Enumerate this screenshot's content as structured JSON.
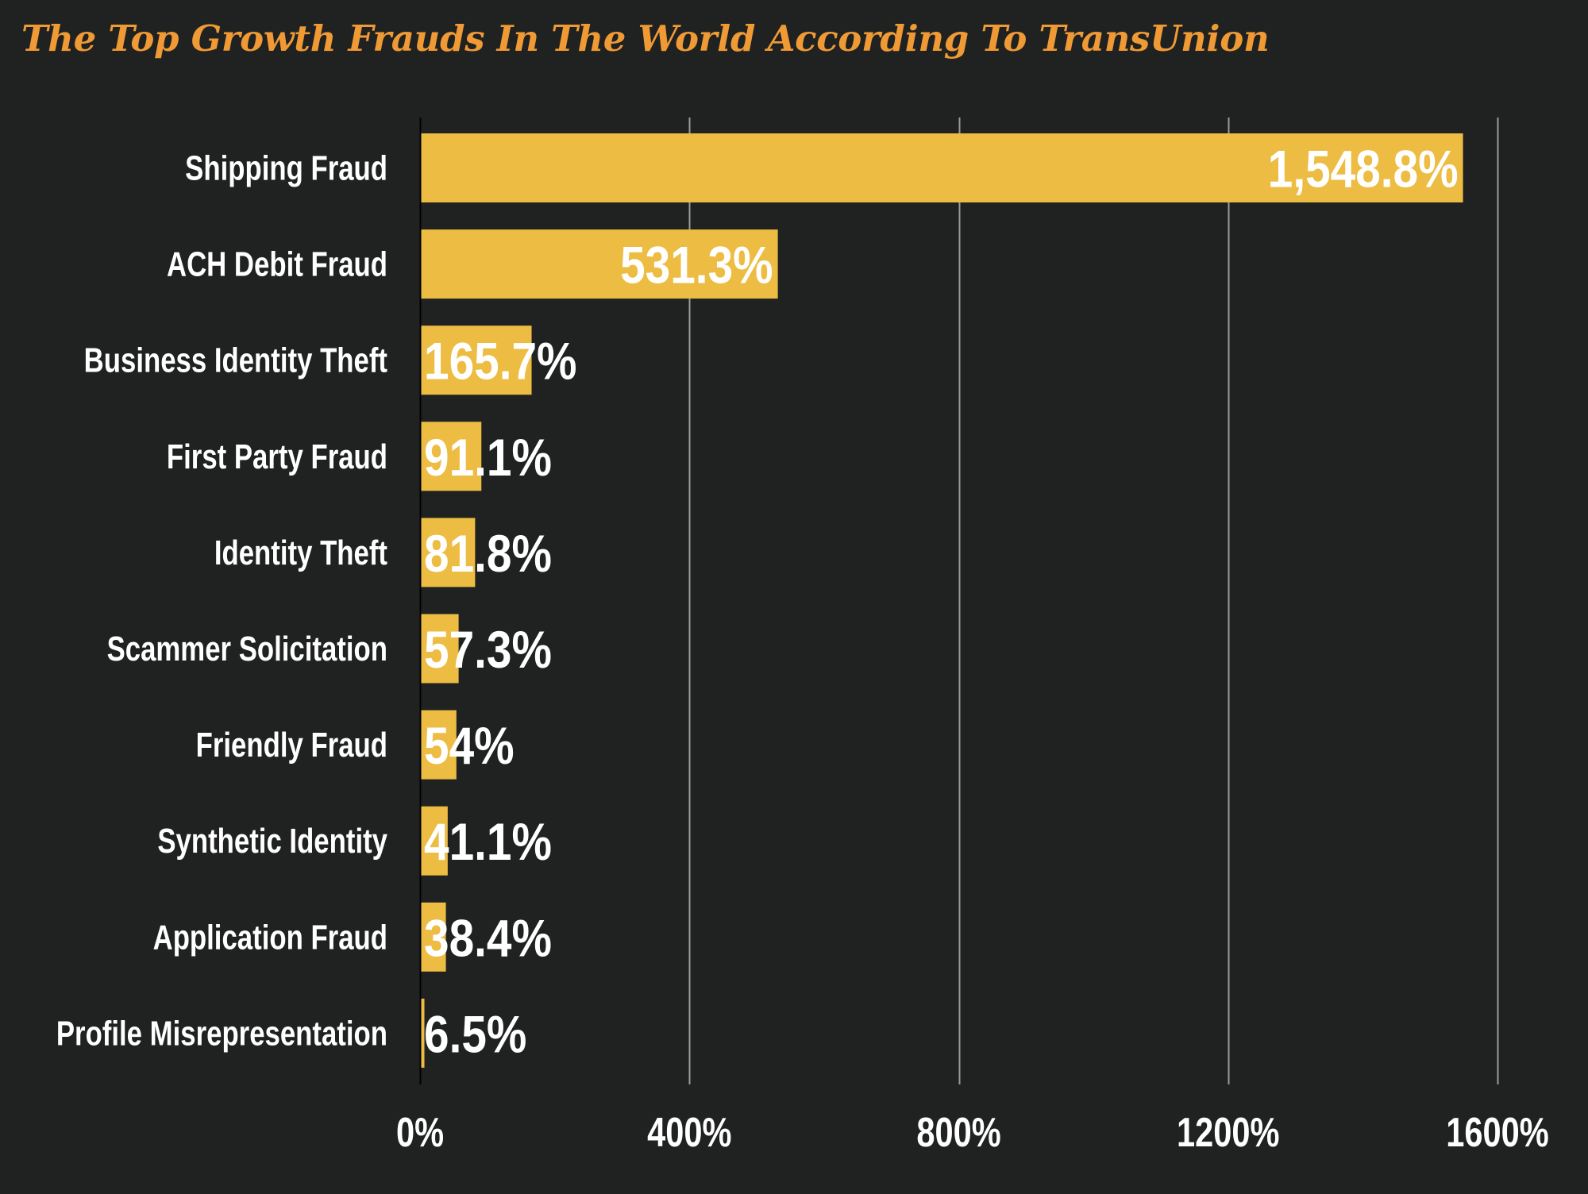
{
  "chart_data": {
    "type": "bar",
    "orientation": "horizontal",
    "title": "The Top Growth Frauds In The World According To TransUnion",
    "xlabel": "",
    "ylabel": "",
    "categories": [
      "Shipping Fraud",
      "ACH Debit Fraud",
      "Business Identity Theft",
      "First Party Fraud",
      "Identity Theft",
      "Scammer Solicitation",
      "Friendly Fraud",
      "Synthetic Identity",
      "Application Fraud",
      "Profile Misrepresentation"
    ],
    "values": [
      1548.8,
      531.3,
      165.7,
      91.1,
      81.8,
      57.3,
      54,
      41.1,
      38.4,
      6.5
    ],
    "data_labels": [
      "1,548.8%",
      "531.3%",
      "165.7%",
      "91.1%",
      "81.8%",
      "57.3%",
      "54%",
      "41.1%",
      "38.4%",
      "6.5%"
    ],
    "xlim": [
      0,
      1600
    ],
    "xticks": [
      0,
      400,
      800,
      1200,
      1600
    ],
    "xtick_labels": [
      "0%",
      "400%",
      "800%",
      "1200%",
      "1600%"
    ],
    "grid": true,
    "legend": "none",
    "colors": {
      "bar": "#EDBC43",
      "background": "#202221",
      "title": "#F09A35",
      "text": "#FFFFFF",
      "grid": "#9A9A9A",
      "axis": "#000000"
    }
  }
}
